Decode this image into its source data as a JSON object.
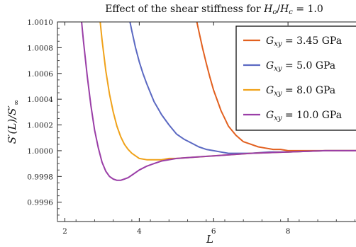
{
  "chart_data": {
    "type": "line",
    "title": "Effect of the shear stiffness for H_o/H_c = 1.0",
    "title_prefix": "Effect of the shear stiffness for ",
    "title_math": "H",
    "title_sub1": "o",
    "title_mid": "/",
    "title_math2": "H",
    "title_sub2": "c",
    "title_suffix": " = 1.0",
    "xlabel": "L",
    "ylabel": "S′(L)/S′∞",
    "ylabel_main": "S′(L)/S′",
    "ylabel_sub": "∞",
    "xlim": [
      1.8,
      10.0
    ],
    "ylim": [
      0.99945,
      1.001
    ],
    "xticks": [
      2,
      4,
      6,
      8,
      10
    ],
    "xtick_labels": [
      "2",
      "4",
      "6",
      "8",
      "10"
    ],
    "yticks": [
      0.9996,
      0.9998,
      1.0,
      1.0002,
      1.0004,
      1.0006,
      1.0008,
      1.001
    ],
    "ytick_labels": [
      "0.9996",
      "0.9998",
      "1.0000",
      "1.0002",
      "1.0004",
      "1.0006",
      "1.0008",
      "1.0010"
    ],
    "grid": false,
    "legend_position": "top-right",
    "series": [
      {
        "name": "G_xy = 3.45 GPa",
        "legend_math": "G",
        "legend_sub": "xy",
        "legend_value": " = 3.45 GPa",
        "color": "#e2601f",
        "x": [
          5.55,
          5.6,
          5.7,
          5.8,
          5.9,
          6.0,
          6.1,
          6.2,
          6.3,
          6.4,
          6.6,
          6.8,
          7.0,
          7.2,
          7.4,
          7.6,
          7.8,
          8.0,
          8.5,
          9.0,
          9.5,
          10.0
        ],
        "y": [
          1.001,
          1.00093,
          1.0008,
          1.00068,
          1.00057,
          1.00047,
          1.00039,
          1.00031,
          1.00025,
          1.00019,
          1.00012,
          1.00007,
          1.00005,
          1.00003,
          1.00002,
          1.00001,
          1.00001,
          1.0,
          1.0,
          1.0,
          1.0,
          1.0
        ]
      },
      {
        "name": "G_xy = 5.0 GPa",
        "legend_math": "G",
        "legend_sub": "xy",
        "legend_value": " = 5.0 GPa",
        "color": "#5b69c2",
        "x": [
          3.75,
          3.8,
          3.9,
          4.0,
          4.1,
          4.2,
          4.3,
          4.4,
          4.5,
          4.6,
          4.8,
          5.0,
          5.2,
          5.4,
          5.6,
          5.8,
          6.0,
          6.2,
          6.4,
          6.6,
          7.0,
          7.5,
          8.0,
          9.0,
          10.0
        ],
        "y": [
          1.001,
          1.00093,
          1.0008,
          1.00069,
          1.0006,
          1.00052,
          1.00045,
          1.00038,
          1.00033,
          1.00028,
          1.0002,
          1.00013,
          1.00009,
          1.00006,
          1.00003,
          1.00001,
          1.0,
          0.99999,
          0.99998,
          0.99998,
          0.99998,
          0.99999,
          0.99999,
          1.0,
          1.0
        ]
      },
      {
        "name": "G_xy = 8.0 GPa",
        "legend_math": "G",
        "legend_sub": "xy",
        "legend_value": " = 8.0 GPa",
        "color": "#f0a21a",
        "x": [
          2.95,
          3.0,
          3.1,
          3.2,
          3.3,
          3.4,
          3.5,
          3.6,
          3.7,
          3.8,
          3.9,
          4.0,
          4.2,
          4.4,
          4.6,
          4.8,
          5.0,
          5.5,
          6.0,
          7.0,
          8.0,
          9.0,
          10.0
        ],
        "y": [
          1.001,
          1.00086,
          1.00062,
          1.00044,
          1.0003,
          1.00019,
          1.00011,
          1.00005,
          1.00001,
          0.99998,
          0.99996,
          0.99994,
          0.99993,
          0.99993,
          0.99993,
          0.99994,
          0.99994,
          0.99995,
          0.99996,
          0.99998,
          0.99999,
          1.0,
          1.0
        ]
      },
      {
        "name": "G_xy = 10.0 GPa",
        "legend_math": "G",
        "legend_sub": "xy",
        "legend_value": " = 10.0 GPa",
        "color": "#9a3ea7",
        "x": [
          2.45,
          2.5,
          2.6,
          2.7,
          2.8,
          2.9,
          3.0,
          3.1,
          3.2,
          3.3,
          3.4,
          3.5,
          3.6,
          3.7,
          3.8,
          4.0,
          4.2,
          4.4,
          4.6,
          5.0,
          5.5,
          6.0,
          7.0,
          8.0,
          9.0,
          10.0
        ],
        "y": [
          1.001,
          1.00085,
          1.00058,
          1.00035,
          1.00016,
          1.00002,
          0.99991,
          0.99984,
          0.9998,
          0.99978,
          0.99977,
          0.99977,
          0.99978,
          0.99979,
          0.99981,
          0.99985,
          0.99988,
          0.9999,
          0.99992,
          0.99994,
          0.99995,
          0.99996,
          0.99998,
          0.99999,
          1.0,
          1.0
        ]
      }
    ]
  }
}
